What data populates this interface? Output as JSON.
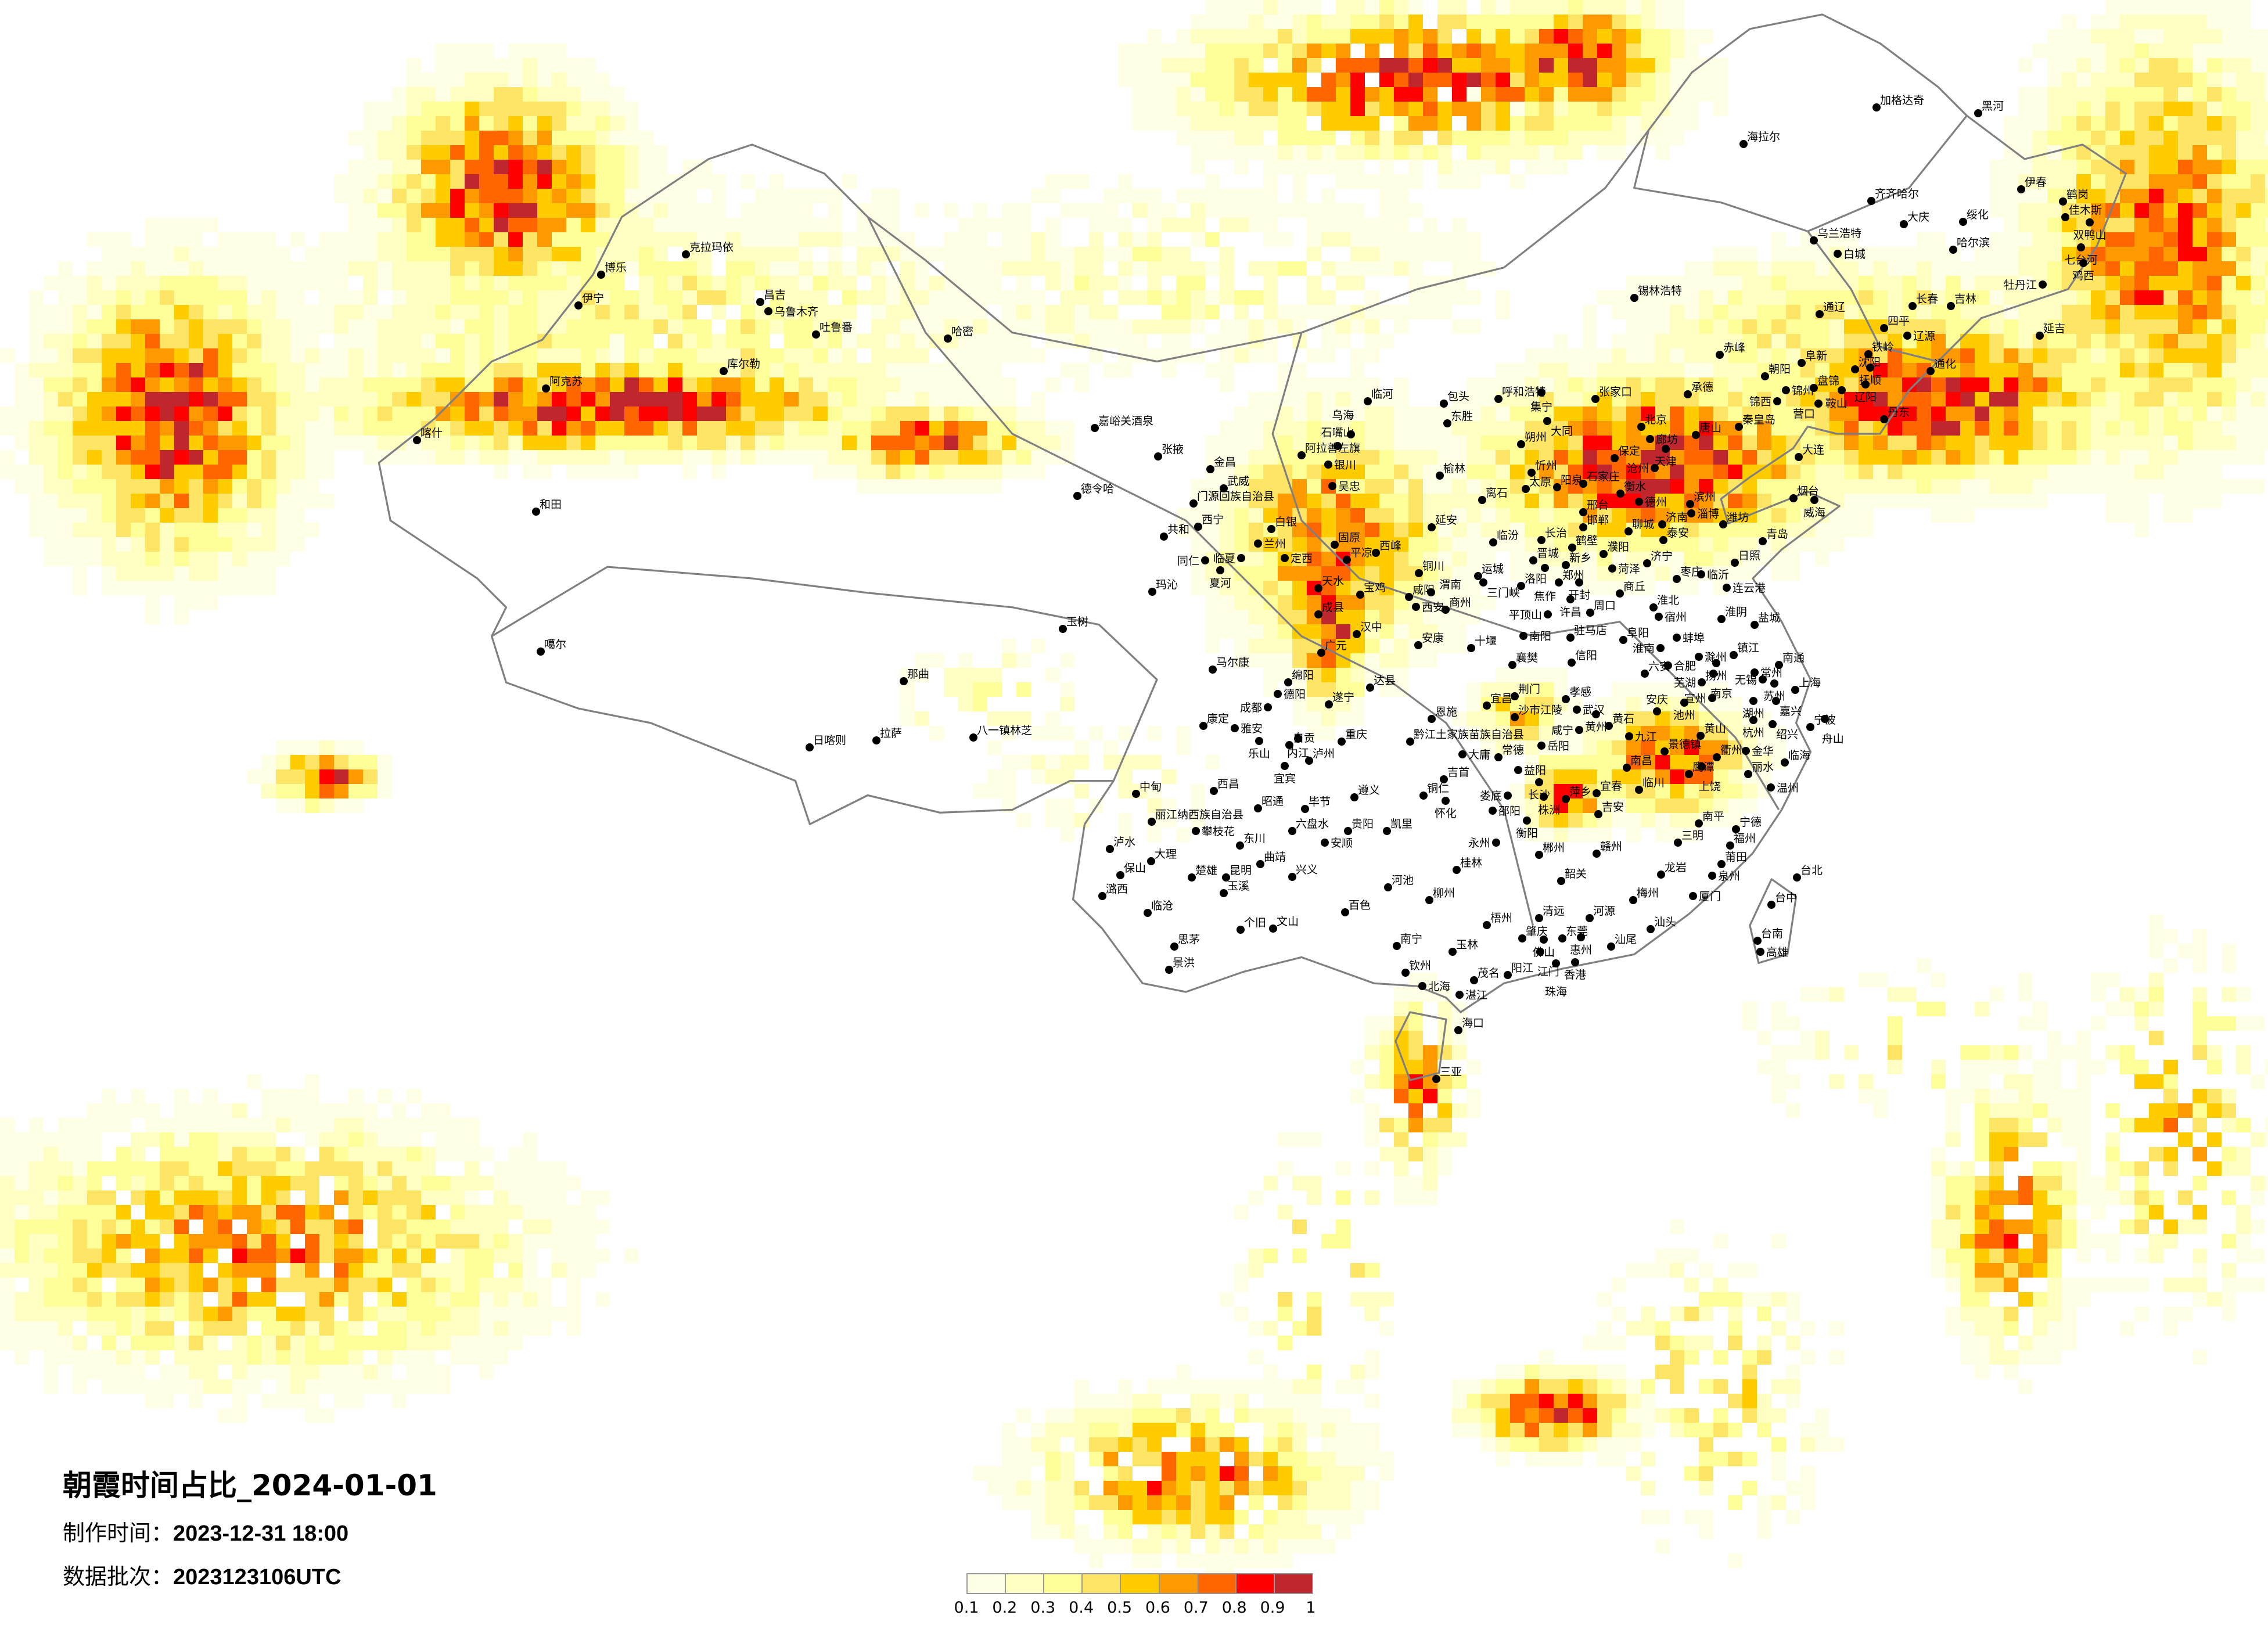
{
  "title": "朝霞时间占比_2024-01-01",
  "production_time_label": "制作时间：",
  "production_time": "2023-12-31 18:00",
  "data_batch_label": "数据批次：",
  "data_batch": "2023123106UTC",
  "legend": {
    "ticks": [
      "0.1",
      "0.2",
      "0.3",
      "0.4",
      "0.5",
      "0.6",
      "0.7",
      "0.8",
      "0.9",
      "1"
    ],
    "colors": [
      "#FFFFE6",
      "#FFFFC4",
      "#FFFF99",
      "#FFE566",
      "#FFCC00",
      "#FF9900",
      "#FF6600",
      "#FF0000",
      "#C0262D"
    ]
  },
  "colors": {
    "boundary": "#808080",
    "city_dot": "#000000",
    "background": "#FFFFFF"
  },
  "cities": [
    "克拉玛依",
    "博乐",
    "伊宁",
    "昌吉",
    "乌鲁木齐",
    "吐鲁番",
    "哈密",
    "库尔勒",
    "阿克苏",
    "喀什",
    "和田",
    "噶尔",
    "那曲",
    "拉萨",
    "日喀则",
    "八一镇林芝",
    "玉树",
    "嘉峪关酒泉",
    "德令哈",
    "张掖",
    "金昌",
    "武威",
    "门源回族自治县",
    "西宁",
    "共和",
    "白银",
    "兰州",
    "临夏",
    "同仁",
    "夏河",
    "定西",
    "玛沁",
    "天水",
    "宝鸡",
    "成县",
    "马尔康",
    "阿拉善左旗",
    "银川",
    "石嘴山",
    "乌海",
    "吴忠",
    "固原",
    "平凉",
    "西峰",
    "临河",
    "包头",
    "东胜",
    "呼和浩特",
    "集宁",
    "锡林浩特",
    "榆林",
    "延安",
    "离石",
    "朔州",
    "大同",
    "忻州",
    "太原",
    "阳泉",
    "临汾",
    "长治",
    "晋城",
    "运城",
    "铜川",
    "咸阳",
    "西安",
    "渭南",
    "商州",
    "汉中",
    "安康",
    "广元",
    "三门峡",
    "洛阳",
    "郑州",
    "开封",
    "焦作",
    "新乡",
    "鹤壁",
    "濮阳",
    "邯郸",
    "邢台",
    "石家庄",
    "衡水",
    "保定",
    "张家口",
    "北京",
    "廊坊",
    "天津",
    "唐山",
    "承德",
    "沧州",
    "德州",
    "聊城",
    "济南",
    "滨州",
    "淄博",
    "潍坊",
    "烟台",
    "威海",
    "青岛",
    "泰安",
    "济宁",
    "菏泽",
    "枣庄",
    "临沂",
    "日照",
    "连云港",
    "商丘",
    "许昌",
    "平顶山",
    "周口",
    "淮北",
    "宿州",
    "淮阴",
    "盐城",
    "南阳",
    "驻马店",
    "阜阳",
    "蚌埠",
    "淮南",
    "十堰",
    "襄樊",
    "信阳",
    "六安",
    "合肥",
    "滁州",
    "扬州",
    "镇江",
    "南京",
    "南通",
    "常州",
    "无锡",
    "苏州",
    "上海",
    "芜湖",
    "宣州",
    "湖州",
    "嘉兴",
    "杭州",
    "绍兴",
    "宁波",
    "舟山",
    "绵阳",
    "德阳",
    "成都",
    "达县",
    "遂宁",
    "荆门",
    "孝感",
    "宜昌",
    "武汉",
    "黄州",
    "黄石",
    "安庆",
    "池州",
    "恩施",
    "沙市江陵",
    "咸宁",
    "黄山",
    "康定",
    "雅安",
    "乐山",
    "自贡",
    "内江",
    "重庆",
    "黔江土家族苗族自治县",
    "九江",
    "岳阳",
    "景德镇",
    "衢州",
    "金华",
    "大庸",
    "常德",
    "宜宾",
    "泸州",
    "临海",
    "益阳",
    "南昌",
    "吉首",
    "鹰潭",
    "上饶",
    "丽水",
    "长沙",
    "临川",
    "温州",
    "中甸",
    "西昌",
    "遵义",
    "铜仁",
    "怀化",
    "娄底",
    "株洲",
    "萍乡",
    "宜春",
    "昭通",
    "毕节",
    "邵阳",
    "吉安",
    "丽江纳西族自治县",
    "攀枝花",
    "六盘水",
    "贵阳",
    "凯里",
    "衡阳",
    "南平",
    "宁德",
    "安顺",
    "东川",
    "永州",
    "三明",
    "福州",
    "泸水",
    "大理",
    "曲靖",
    "郴州",
    "赣州",
    "莆田",
    "桂林",
    "兴义",
    "保山",
    "楚雄",
    "昆明",
    "龙岩",
    "泉州",
    "台北",
    "韶关",
    "河池",
    "玉溪",
    "潞西",
    "柳州",
    "梅州",
    "厦门",
    "台中",
    "百色",
    "临沧",
    "清远",
    "河源",
    "梧州",
    "个旧",
    "文山",
    "汕头",
    "思茅",
    "肇庆",
    "佛山",
    "东莞",
    "惠州",
    "南宁",
    "台南",
    "玉林",
    "汕尾",
    "江门",
    "高雄",
    "香港",
    "珠海",
    "景洪",
    "钦州",
    "茂名",
    "阳江",
    "北海",
    "湛江",
    "海口",
    "三亚",
    "加格达奇",
    "黑河",
    "海拉尔",
    "伊春",
    "齐齐哈尔",
    "鹤岗",
    "佳木斯",
    "双鸭山",
    "大庆",
    "绥化",
    "乌兰浩特",
    "哈尔滨",
    "七台河",
    "白城",
    "鸡西",
    "牡丹江",
    "长春",
    "吉林",
    "通辽",
    "四平",
    "辽源",
    "延吉",
    "赤峰",
    "铁岭",
    "阜新",
    "沈阳",
    "抚顺",
    "通化",
    "朝阳",
    "盘锦",
    "锦州",
    "辽阳",
    "鞍山",
    "营口",
    "锦西",
    "丹东",
    "秦皇岛",
    "大连"
  ]
}
